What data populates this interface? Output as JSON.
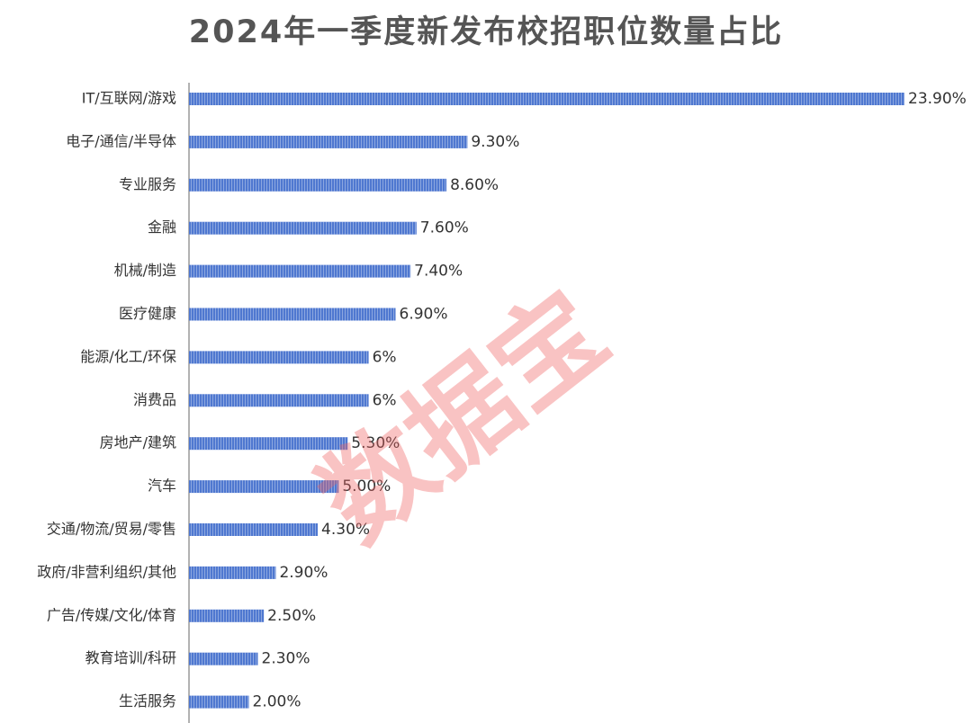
{
  "chart_data": {
    "type": "bar",
    "orientation": "horizontal",
    "title": "2024年一季度新发布校招职位数量占比",
    "watermark": "数据宝",
    "categories": [
      "IT/互联网/游戏",
      "电子/通信/半导体",
      "专业服务",
      "金融",
      "机械/制造",
      "医疗健康",
      "能源/化工/环保",
      "消费品",
      "房地产/建筑",
      "汽车",
      "交通/物流/贸易/零售",
      "政府/非营利组织/其他",
      "广告/传媒/文化/体育",
      "教育培训/科研",
      "生活服务"
    ],
    "values": [
      23.9,
      9.3,
      8.6,
      7.6,
      7.4,
      6.9,
      6,
      6,
      5.3,
      5.0,
      4.3,
      2.9,
      2.5,
      2.3,
      2.0
    ],
    "value_labels": [
      "23.90%",
      "9.30%",
      "8.60%",
      "7.60%",
      "7.40%",
      "6.90%",
      "6%",
      "6%",
      "5.30%",
      "5.00%",
      "4.30%",
      "2.90%",
      "2.50%",
      "2.30%",
      "2.00%"
    ],
    "color": "#4f78d0"
  }
}
